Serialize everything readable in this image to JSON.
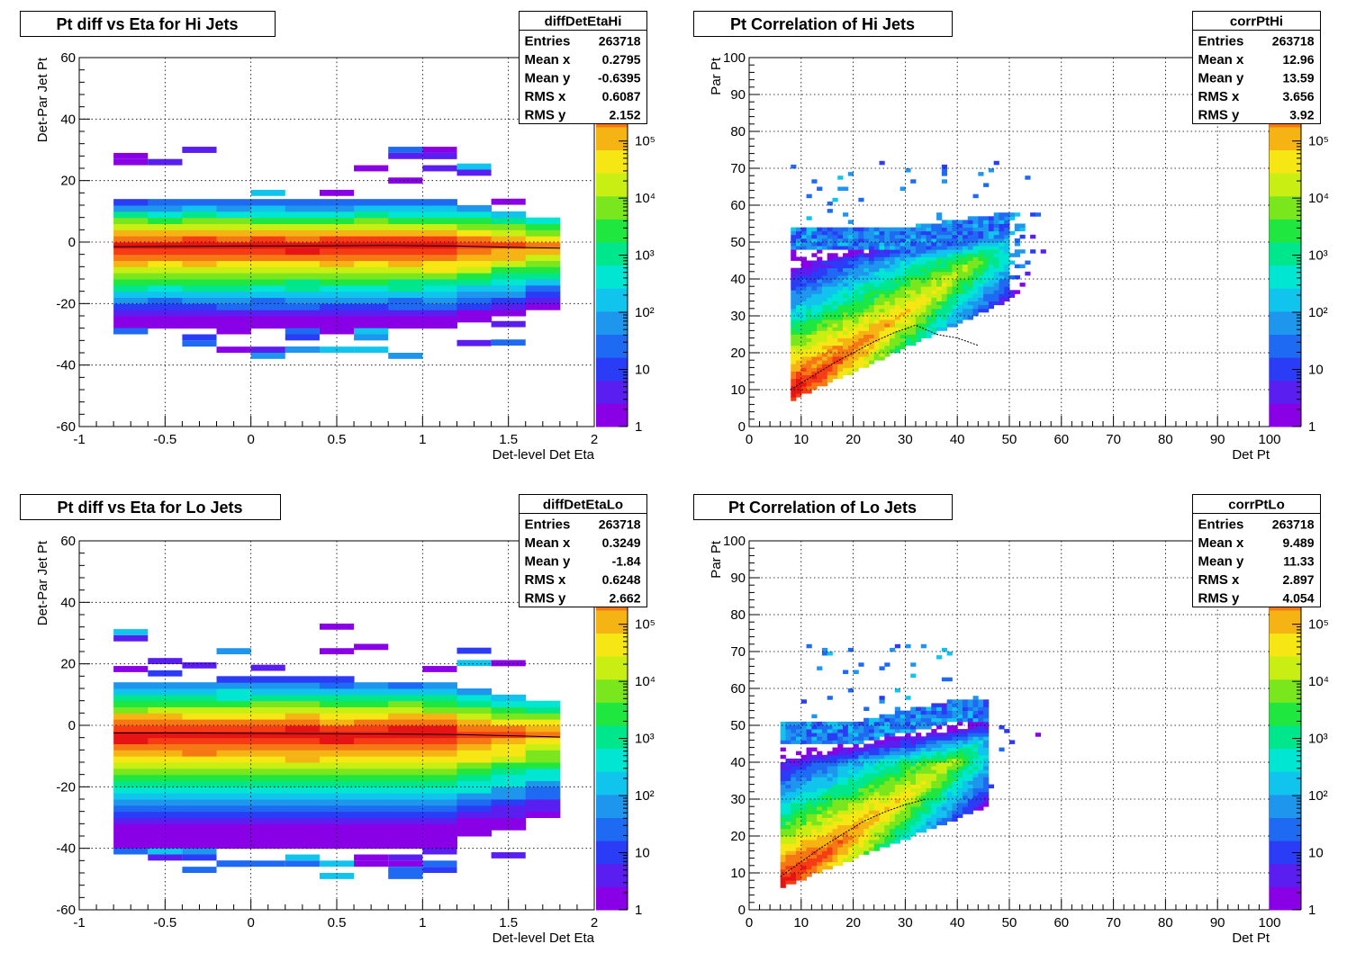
{
  "chart_data": [
    {
      "type": "heatmap",
      "title": "Pt diff vs Eta for Hi Jets",
      "xlabel": "Det-level Det Eta",
      "ylabel": "Det-Par Jet Pt",
      "xlim": [
        -1,
        2
      ],
      "ylim": [
        -60,
        60
      ],
      "xticks": [
        "-1",
        "-0.5",
        "0",
        "0.5",
        "1",
        "1.5",
        "2"
      ],
      "yticks": [
        "-60",
        "-40",
        "-20",
        "0",
        "20",
        "40",
        "60"
      ],
      "z_log": true,
      "z_labels": [
        "1",
        "10",
        "10²",
        "10³",
        "10⁴",
        "10⁵"
      ],
      "grid": true,
      "kind": "eta",
      "stats": {
        "name": "diffDetEtaHi",
        "rows": [
          [
            "Entries",
            "263718"
          ],
          [
            "Mean x",
            "0.2795"
          ],
          [
            "Mean y",
            "-0.6395"
          ],
          [
            "RMS x",
            "0.6087"
          ],
          [
            "RMS y",
            "2.152"
          ]
        ]
      },
      "profile": {
        "x": [
          -0.8,
          -0.4,
          0,
          0.4,
          0.8,
          1.2,
          1.6,
          1.8
        ],
        "y": [
          -1.5,
          -1.4,
          -1.3,
          -1.2,
          -1.1,
          -1.3,
          -1.8,
          -2.0
        ]
      }
    },
    {
      "type": "heatmap",
      "title": "Pt Correlation of Hi Jets",
      "xlabel": "Det Pt",
      "ylabel": "Par Pt",
      "xlim": [
        0,
        100
      ],
      "ylim": [
        0,
        100
      ],
      "xticks": [
        "0",
        "10",
        "20",
        "30",
        "40",
        "50",
        "60",
        "70",
        "80",
        "90",
        "100"
      ],
      "yticks": [
        "0",
        "10",
        "20",
        "30",
        "40",
        "50",
        "60",
        "70",
        "80",
        "90",
        "100"
      ],
      "z_log": true,
      "z_labels": [
        "1",
        "10",
        "10²",
        "10³",
        "10⁴",
        "10⁵"
      ],
      "grid": true,
      "kind": "corr",
      "stats": {
        "name": "corrPtHi",
        "rows": [
          [
            "Entries",
            "263718"
          ],
          [
            "Mean x",
            "12.96"
          ],
          [
            "Mean y",
            "13.59"
          ],
          [
            "RMS x",
            "3.656"
          ],
          [
            "RMS y",
            "3.92"
          ]
        ]
      },
      "profile": {
        "x": [
          8,
          12,
          16,
          20,
          24,
          28,
          32,
          36,
          40,
          44
        ],
        "y": [
          10,
          13.5,
          17,
          20,
          23,
          25.5,
          27.5,
          25,
          24,
          22
        ]
      }
    },
    {
      "type": "heatmap",
      "title": "Pt diff vs Eta for Lo Jets",
      "xlabel": "Det-level Det Eta",
      "ylabel": "Det-Par Jet Pt",
      "xlim": [
        -1,
        2
      ],
      "ylim": [
        -60,
        60
      ],
      "xticks": [
        "-1",
        "-0.5",
        "0",
        "0.5",
        "1",
        "1.5",
        "2"
      ],
      "yticks": [
        "-60",
        "-40",
        "-20",
        "0",
        "20",
        "40",
        "60"
      ],
      "z_log": true,
      "z_labels": [
        "1",
        "10",
        "10²",
        "10³",
        "10⁴",
        "10⁵"
      ],
      "grid": true,
      "kind": "eta",
      "stats": {
        "name": "diffDetEtaLo",
        "rows": [
          [
            "Entries",
            "263718"
          ],
          [
            "Mean x",
            "0.3249"
          ],
          [
            "Mean y",
            "-1.84"
          ],
          [
            "RMS x",
            "0.6248"
          ],
          [
            "RMS y",
            "2.662"
          ]
        ]
      },
      "profile": {
        "x": [
          -0.8,
          -0.4,
          0,
          0.4,
          0.8,
          1.2,
          1.6,
          1.8
        ],
        "y": [
          -2.5,
          -2.5,
          -2.6,
          -2.7,
          -2.8,
          -3.0,
          -3.5,
          -3.8
        ]
      }
    },
    {
      "type": "heatmap",
      "title": "Pt Correlation of Lo Jets",
      "xlabel": "Det Pt",
      "ylabel": "Par Pt",
      "xlim": [
        0,
        100
      ],
      "ylim": [
        0,
        100
      ],
      "xticks": [
        "0",
        "10",
        "20",
        "30",
        "40",
        "50",
        "60",
        "70",
        "80",
        "90",
        "100"
      ],
      "yticks": [
        "0",
        "10",
        "20",
        "30",
        "40",
        "50",
        "60",
        "70",
        "80",
        "90",
        "100"
      ],
      "z_log": true,
      "z_labels": [
        "1",
        "10",
        "10²",
        "10³",
        "10⁴",
        "10⁵"
      ],
      "grid": true,
      "kind": "corr",
      "stats": {
        "name": "corrPtLo",
        "rows": [
          [
            "Entries",
            "263718"
          ],
          [
            "Mean x",
            "9.489"
          ],
          [
            "Mean y",
            "11.33"
          ],
          [
            "RMS x",
            "2.897"
          ],
          [
            "RMS y",
            "4.054"
          ]
        ]
      },
      "profile": {
        "x": [
          6,
          10,
          14,
          18,
          22,
          26,
          30,
          34
        ],
        "y": [
          9,
          13,
          17,
          20.5,
          24,
          26.5,
          28.5,
          30
        ]
      }
    }
  ],
  "palette": [
    "#8a00e6",
    "#5a1ef0",
    "#2a3cf5",
    "#1f6af2",
    "#1f96ee",
    "#10c4ee",
    "#00e6d2",
    "#00e68c",
    "#20e640",
    "#7ae61e",
    "#c8ee14",
    "#f5e614",
    "#f5b414",
    "#f57814",
    "#f53c14",
    "#e61414"
  ]
}
